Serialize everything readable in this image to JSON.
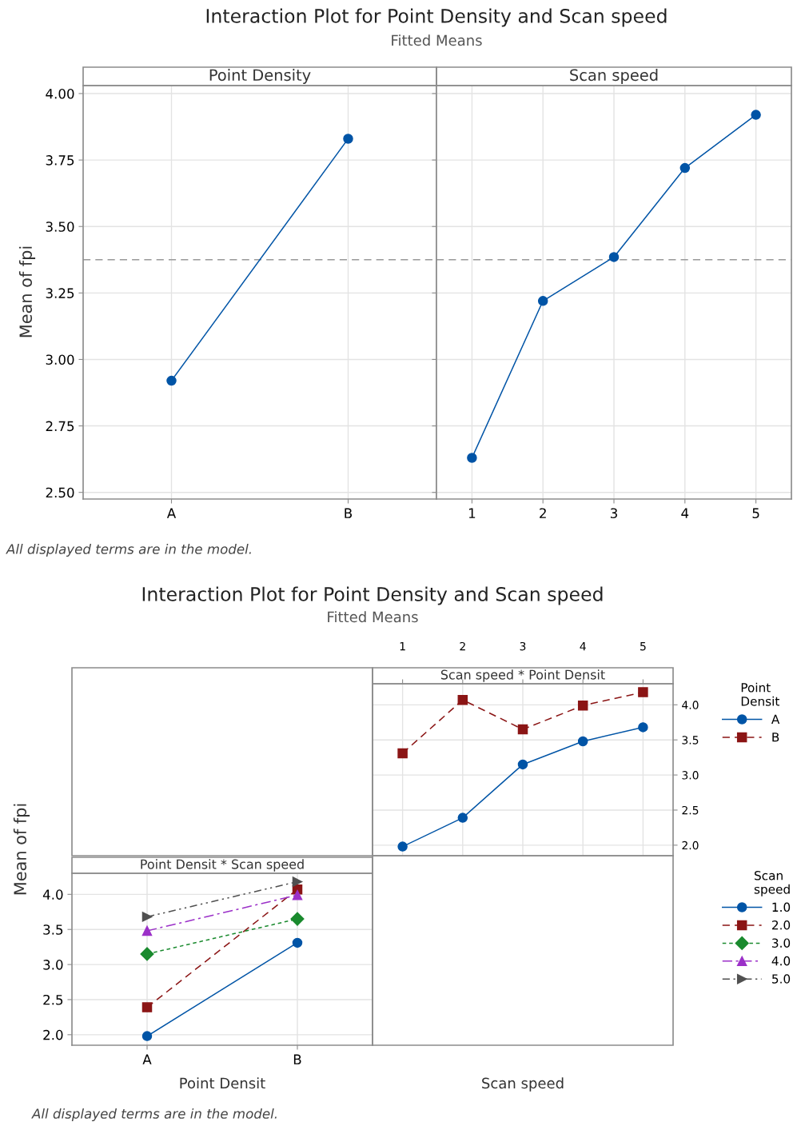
{
  "chart_data": [
    {
      "type": "other",
      "title": "Interaction Plot for Point Density and Scan speed",
      "subtitle": "Fitted Means",
      "annotations": [
        "All displayed terms are in the model."
      ]
    },
    {
      "type": "line",
      "title": "Point Density",
      "ylabel": "Mean of fpi",
      "categories": [
        "A",
        "B"
      ],
      "series": [
        {
          "color": "#0054a6",
          "values": [
            2.92,
            3.83
          ]
        }
      ],
      "ylim": [
        2.475,
        4.03
      ],
      "yticks": [
        {
          "value": 2.5,
          "label": "2.50"
        },
        {
          "value": 2.75,
          "label": "2.75"
        },
        {
          "value": 3.0,
          "label": "3.00"
        },
        {
          "value": 3.25,
          "label": "3.25"
        },
        {
          "value": 3.5,
          "label": "3.50"
        },
        {
          "value": 3.75,
          "label": "3.75"
        },
        {
          "value": 4.0,
          "label": "4.00"
        }
      ],
      "ref_lines": [
        {
          "axis": "y",
          "value": 3.375,
          "color": "#999999",
          "line_style": "dashed"
        }
      ],
      "grid": true,
      "marker": "circle",
      "line_style": "solid"
    },
    {
      "type": "line",
      "title": "Scan speed",
      "x": [
        1,
        2,
        3,
        4,
        5
      ],
      "series": [
        {
          "color": "#0054a6",
          "values": [
            2.63,
            3.22,
            3.385,
            3.72,
            3.92
          ]
        }
      ],
      "xlim": [
        0.5,
        5.5
      ],
      "xticks": [
        1,
        2,
        3,
        4,
        5
      ],
      "ylim": [
        2.475,
        4.03
      ],
      "yticks": [
        {
          "value": 2.5,
          "label": null
        },
        {
          "value": 2.75,
          "label": null
        },
        {
          "value": 3.0,
          "label": null
        },
        {
          "value": 3.25,
          "label": null
        },
        {
          "value": 3.5,
          "label": null
        },
        {
          "value": 3.75,
          "label": null
        },
        {
          "value": 4.0,
          "label": null
        }
      ],
      "ref_lines": [
        {
          "axis": "y",
          "value": 3.375,
          "color": "#999999",
          "line_style": "dashed"
        }
      ],
      "grid": true,
      "marker": "circle",
      "line_style": "solid",
      "tick_labels": "x"
    },
    {
      "type": "other",
      "title": "Interaction Plot for Point Density and Scan speed",
      "subtitle": "Fitted Means",
      "annotations": [
        "All displayed terms are in the model."
      ]
    },
    {
      "type": "line",
      "title": "Scan speed * Point Densit",
      "xlabel": "Scan speed",
      "x": [
        1,
        2,
        3,
        4,
        5
      ],
      "legend_title": "Point Densit",
      "legend": "right",
      "series": [
        {
          "name": "A",
          "color": "#0054a6",
          "values": [
            1.98,
            2.39,
            3.15,
            3.48,
            3.68
          ],
          "marker": "circle",
          "line_style": "solid"
        },
        {
          "name": "B",
          "color": "#8b1515",
          "values": [
            3.31,
            4.07,
            3.65,
            3.99,
            4.18
          ],
          "marker": "square",
          "line_style": "dashed"
        }
      ],
      "xlim": [
        0.5,
        5.5
      ],
      "xticks": [
        1,
        2,
        3,
        4,
        5
      ],
      "ylim": [
        1.85,
        4.3
      ],
      "yticks": [
        {
          "value": 2.0,
          "label": "2.0"
        },
        {
          "value": 2.5,
          "label": "2.5"
        },
        {
          "value": 3.0,
          "label": "3.0"
        },
        {
          "value": 3.5,
          "label": "3.5"
        },
        {
          "value": 4.0,
          "label": "4.0"
        }
      ],
      "grid": true
    },
    {
      "type": "line",
      "title": "Point Densit * Scan speed",
      "xlabel": "Point Densit",
      "ylabel": "Mean of fpi",
      "categories": [
        "A",
        "B"
      ],
      "legend_title": "Scan speed",
      "legend": "right",
      "series": [
        {
          "name": "1.0",
          "color": "#0054a6",
          "values": [
            1.98,
            3.31
          ],
          "marker": "circle",
          "line_style": "solid"
        },
        {
          "name": "2.0",
          "color": "#8b1515",
          "values": [
            2.39,
            4.07
          ],
          "marker": "square",
          "line_style": "dashed"
        },
        {
          "name": "3.0",
          "color": "#1a8a2e",
          "values": [
            3.15,
            3.65
          ],
          "marker": "diamond",
          "line_style": "dotted"
        },
        {
          "name": "4.0",
          "color": "#9b30c8",
          "values": [
            3.48,
            3.99
          ],
          "marker": "triangle",
          "line_style": "dashdot"
        },
        {
          "name": "5.0",
          "color": "#505050",
          "values": [
            3.68,
            4.18
          ],
          "marker": "triangle-right",
          "line_style": "dashdotdot"
        }
      ],
      "ylim": [
        1.85,
        4.3
      ],
      "yticks": [
        {
          "value": 2.0,
          "label": "2.0"
        },
        {
          "value": 2.5,
          "label": "2.5"
        },
        {
          "value": 3.0,
          "label": "3.0"
        },
        {
          "value": 3.5,
          "label": "3.5"
        },
        {
          "value": 4.0,
          "label": "4.0"
        }
      ],
      "grid": true
    }
  ]
}
